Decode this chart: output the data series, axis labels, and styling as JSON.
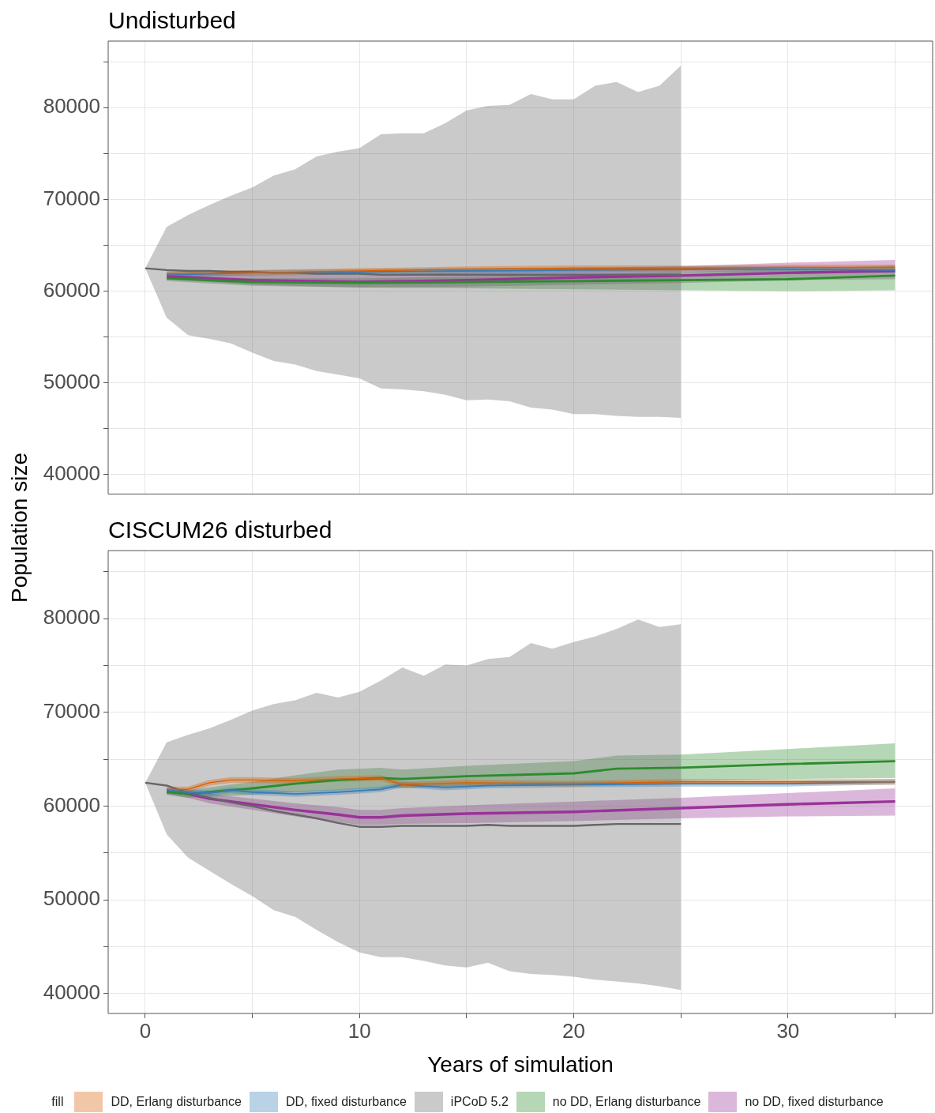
{
  "chart_data": [
    {
      "type": "line",
      "title": "Undisturbed",
      "ylabel": "Population size",
      "xlim": [
        -1.73,
        36.75
      ],
      "ylim": [
        37890,
        87260
      ],
      "xticks": [
        0,
        {
          "value": 5,
          "label": null
        },
        10,
        {
          "value": 15,
          "label": null
        },
        20,
        {
          "value": 25,
          "label": null
        },
        30,
        {
          "value": 35,
          "label": null
        }
      ],
      "yticks": [
        40000,
        {
          "value": 45000,
          "label": null
        },
        50000,
        {
          "value": 55000,
          "label": null
        },
        60000,
        {
          "value": 65000,
          "label": null
        },
        70000,
        {
          "value": 75000,
          "label": null
        },
        80000,
        {
          "value": 85000,
          "label": null
        }
      ],
      "grid": true,
      "tick_labels": "y",
      "series": [
        {
          "color": "#d95f02",
          "x": [
            1,
            5,
            10,
            15,
            20,
            25,
            30,
            35
          ],
          "values": [
            61900,
            62000,
            62200,
            62400,
            62500,
            62500,
            62600,
            62600
          ],
          "lower": [
            61600,
            61700,
            61900,
            62100,
            62200,
            62200,
            62300,
            62300
          ],
          "upper": [
            62200,
            62300,
            62500,
            62700,
            62800,
            62800,
            62900,
            62900
          ]
        },
        {
          "color": "#377eb8",
          "x": [
            1,
            5,
            10,
            15,
            20,
            25,
            30,
            35
          ],
          "values": [
            61800,
            62000,
            62100,
            62200,
            62300,
            62400,
            62400,
            62300
          ],
          "lower": [
            61500,
            61700,
            61800,
            61900,
            62000,
            62100,
            62100,
            62000
          ],
          "upper": [
            62100,
            62300,
            62400,
            62500,
            62600,
            62700,
            62700,
            62600
          ]
        },
        {
          "color": "#666666",
          "x": [
            0,
            1,
            2,
            3,
            4,
            5,
            6,
            7,
            8,
            9,
            10,
            11,
            12,
            13,
            14,
            15,
            16,
            17,
            18,
            19,
            20,
            21,
            22,
            23,
            24,
            25
          ],
          "values": [
            62500,
            62300,
            62200,
            62200,
            62100,
            62100,
            62000,
            62000,
            61900,
            61900,
            61900,
            61800,
            61800,
            61800,
            61800,
            61800,
            61800,
            61800,
            61800,
            61800,
            61800,
            61800,
            61800,
            61800,
            61800,
            61800
          ],
          "lower": [
            62500,
            57100,
            55200,
            54800,
            54300,
            53300,
            52400,
            52000,
            51300,
            50900,
            50500,
            49400,
            49300,
            49100,
            48700,
            48100,
            48200,
            48000,
            47300,
            47100,
            46600,
            46600,
            46400,
            46300,
            46300,
            46200
          ],
          "upper": [
            62500,
            67000,
            68300,
            69400,
            70400,
            71300,
            72600,
            73300,
            74700,
            75200,
            75600,
            77100,
            77200,
            77200,
            78300,
            79700,
            80200,
            80300,
            81500,
            80900,
            80900,
            82400,
            82800,
            81700,
            82400,
            84600
          ]
        },
        {
          "color": "#2e8b2e",
          "x": [
            1,
            5,
            10,
            15,
            20,
            25,
            30,
            35
          ],
          "values": [
            61400,
            61000,
            60900,
            61000,
            61100,
            61200,
            61300,
            61700
          ],
          "lower": [
            61100,
            60600,
            60400,
            60300,
            60200,
            60100,
            60000,
            60100
          ],
          "upper": [
            61700,
            61400,
            61400,
            61600,
            61800,
            62100,
            62400,
            62800
          ]
        },
        {
          "color": "#993399",
          "x": [
            1,
            5,
            10,
            15,
            20,
            25,
            30,
            35
          ],
          "values": [
            61600,
            61200,
            61000,
            61200,
            61500,
            61700,
            62000,
            62200
          ],
          "lower": [
            61300,
            60700,
            60400,
            60500,
            60700,
            60900,
            61200,
            61300
          ],
          "upper": [
            61900,
            61800,
            61800,
            62100,
            62500,
            62700,
            63100,
            63400
          ]
        }
      ]
    },
    {
      "type": "line",
      "title": "CISCUM26 disturbed",
      "xlabel": "Years of simulation",
      "xlim": [
        -1.73,
        36.75
      ],
      "ylim": [
        37890,
        87260
      ],
      "xticks": [
        0,
        {
          "value": 5,
          "label": null
        },
        10,
        {
          "value": 15,
          "label": null
        },
        20,
        {
          "value": 25,
          "label": null
        },
        30,
        {
          "value": 35,
          "label": null
        }
      ],
      "yticks": [
        40000,
        {
          "value": 45000,
          "label": null
        },
        50000,
        {
          "value": 55000,
          "label": null
        },
        60000,
        {
          "value": 65000,
          "label": null
        },
        70000,
        {
          "value": 75000,
          "label": null
        },
        80000,
        {
          "value": 85000,
          "label": null
        }
      ],
      "grid": true,
      "legend": "bottom",
      "legend_title": "fill",
      "series": [
        {
          "name": "DD, Erlang disturbance",
          "color": "#d95f02",
          "x": [
            1,
            2,
            3,
            4,
            5,
            7,
            9,
            11,
            12,
            15,
            20,
            25,
            30,
            35
          ],
          "values": [
            61800,
            61800,
            62500,
            62800,
            62800,
            62700,
            62900,
            63000,
            62300,
            62500,
            62400,
            62600,
            62600,
            62600
          ],
          "lower": [
            61500,
            61500,
            62200,
            62500,
            62500,
            62400,
            62600,
            62700,
            62000,
            62200,
            62100,
            62300,
            62300,
            62300
          ],
          "upper": [
            62100,
            62100,
            62800,
            63100,
            63100,
            63000,
            63200,
            63300,
            62600,
            62800,
            62700,
            62900,
            62900,
            62900
          ]
        },
        {
          "name": "DD, fixed disturbance",
          "color": "#377eb8",
          "x": [
            1,
            2,
            3,
            4,
            5,
            7,
            9,
            11,
            12,
            14,
            16,
            20,
            25,
            30,
            35
          ],
          "values": [
            61700,
            61500,
            61400,
            61700,
            61500,
            61300,
            61500,
            61800,
            62300,
            62000,
            62200,
            62300,
            62400,
            62400,
            62600
          ],
          "lower": [
            61400,
            61200,
            61100,
            61400,
            61200,
            61000,
            61200,
            61500,
            62000,
            61700,
            61900,
            62000,
            62100,
            62100,
            62300
          ],
          "upper": [
            62000,
            61800,
            61700,
            62000,
            61800,
            61600,
            61800,
            62100,
            62600,
            62300,
            62500,
            62600,
            62700,
            62700,
            62900
          ]
        },
        {
          "name": "iPCoD 5.2",
          "color": "#666666",
          "x": [
            0,
            1,
            2,
            3,
            4,
            5,
            6,
            7,
            8,
            9,
            10,
            11,
            12,
            13,
            14,
            15,
            16,
            17,
            18,
            19,
            20,
            21,
            22,
            23,
            24,
            25
          ],
          "values": [
            62500,
            62200,
            61400,
            60900,
            60400,
            60000,
            59500,
            59100,
            58700,
            58200,
            57800,
            57800,
            57900,
            57900,
            57900,
            57900,
            58000,
            57900,
            57900,
            57900,
            57900,
            58000,
            58100,
            58100,
            58100,
            58100
          ],
          "lower": [
            62500,
            57000,
            54500,
            53100,
            51700,
            50400,
            48900,
            48200,
            46800,
            45500,
            44400,
            43900,
            43900,
            43500,
            43000,
            42800,
            43300,
            42400,
            42100,
            42000,
            41800,
            41500,
            41300,
            41100,
            40800,
            40400
          ],
          "upper": [
            62500,
            66800,
            67600,
            68300,
            69200,
            70200,
            70900,
            71300,
            72100,
            71600,
            72200,
            73400,
            74800,
            73900,
            75100,
            75000,
            75700,
            75900,
            77400,
            76800,
            77500,
            78100,
            78900,
            79900,
            79100,
            79400
          ]
        },
        {
          "name": "no DD, Erlang disturbance",
          "color": "#2e8b2e",
          "x": [
            1,
            2,
            3,
            5,
            7,
            9,
            11,
            12,
            15,
            20,
            22,
            25,
            30,
            35
          ],
          "values": [
            61500,
            61300,
            61500,
            61900,
            62400,
            62800,
            63000,
            62900,
            63200,
            63500,
            64000,
            64100,
            64500,
            64800
          ],
          "lower": [
            61200,
            60900,
            61000,
            61200,
            61500,
            61700,
            61900,
            61900,
            62100,
            62300,
            62600,
            62700,
            62900,
            63000
          ],
          "upper": [
            61800,
            61700,
            62000,
            62600,
            63300,
            63900,
            64100,
            63900,
            64300,
            64800,
            65400,
            65500,
            66100,
            66700
          ]
        },
        {
          "name": "no DD, fixed disturbance",
          "color": "#993399",
          "x": [
            1,
            2,
            3,
            5,
            7,
            9,
            10,
            11,
            12,
            15,
            20,
            25,
            30,
            35
          ],
          "values": [
            61600,
            61300,
            60800,
            60200,
            59600,
            59100,
            58800,
            58800,
            59000,
            59200,
            59400,
            59800,
            60200,
            60500
          ],
          "lower": [
            61300,
            60900,
            60300,
            59600,
            58900,
            58300,
            58000,
            58000,
            58100,
            58200,
            58400,
            58700,
            58900,
            59000
          ],
          "upper": [
            61900,
            61700,
            61300,
            60800,
            60300,
            59900,
            59600,
            59600,
            59800,
            60100,
            60500,
            60900,
            61400,
            61900
          ]
        }
      ]
    }
  ]
}
